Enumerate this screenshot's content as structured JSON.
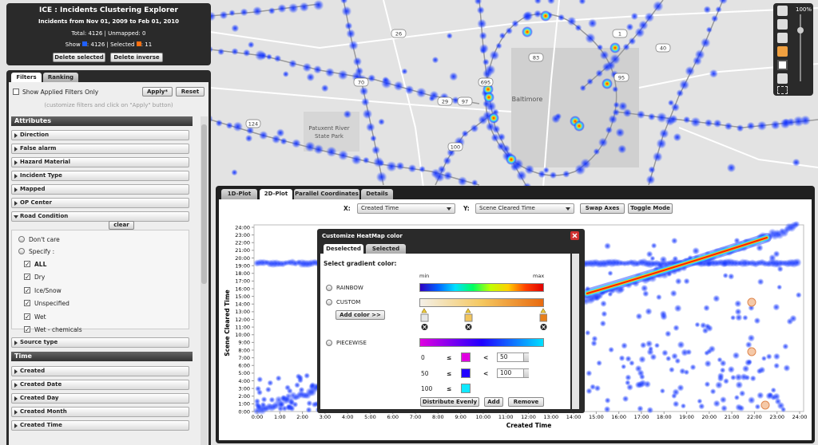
{
  "header": {
    "title": "ICE : Incidents Clustering Explorer",
    "period": "Incidents from Nov 01, 2009 to Feb 01, 2010",
    "totals": "Total: 4126 | Unmapped: 0",
    "show": "Show",
    "show_count": ": 4126 | Selected",
    "selected_count": ": 11",
    "buttons": [
      "Delete selected",
      "Delete inverse"
    ]
  },
  "filters": {
    "tabs": [
      "Filters",
      "Ranking"
    ],
    "show_applied": "Show Applied Filters Only",
    "apply": "Apply*",
    "reset": "Reset",
    "hint": "(customize filters and click on \"Apply\" button)",
    "attributes_title": "Attributes",
    "attributes": [
      "Direction",
      "False alarm",
      "Hazard Material",
      "Incident Type",
      "Mapped",
      "OP Center",
      "Road Condition"
    ],
    "clear": "clear",
    "radios": [
      "Don't care",
      "Specify :"
    ],
    "checks": [
      "ALL",
      "Dry",
      "Ice/Snow",
      "Unspecified",
      "Wet",
      "Wet - chemicals"
    ],
    "after": [
      "Source type"
    ],
    "time_title": "Time",
    "time": [
      "Created",
      "Created Date",
      "Created Day",
      "Created Month",
      "Created Time"
    ]
  },
  "map": {
    "places": [
      "Baltimore",
      "Patuxent River",
      "State Park"
    ],
    "shields": [
      "26",
      "70",
      "695",
      "97",
      "124",
      "100",
      "29",
      "83",
      "1",
      "40",
      "95"
    ]
  },
  "zoom": "100%",
  "plot_panel": {
    "tabs": [
      "1D-Plot",
      "2D-Plot",
      "Parallel Coordinates",
      "Details"
    ],
    "x_prompt": "X:",
    "x_field": "Created Time",
    "y_prompt": "Y:",
    "y_field": "Scene Cleared Time",
    "buttons": [
      "Swap Axes",
      "Toggle Mode"
    ],
    "chart_data": {
      "type": "scatter",
      "x_axis_label": "Created Time",
      "y_axis_label": "Scene Cleared Time",
      "xlim": [
        0,
        24
      ],
      "ylim": [
        0,
        24
      ],
      "xticks": [
        {
          "value": 0,
          "label": "0:00"
        },
        {
          "value": 1,
          "label": "1:00"
        },
        {
          "value": 2,
          "label": "2:00"
        },
        {
          "value": 3,
          "label": "3:00"
        },
        {
          "value": 4,
          "label": "4:00"
        },
        {
          "value": 5,
          "label": "5:00"
        },
        {
          "value": 6,
          "label": "6:00"
        },
        {
          "value": 7,
          "label": "7:00"
        },
        {
          "value": 8,
          "label": "8:00"
        },
        {
          "value": 9,
          "label": "9:00"
        },
        {
          "value": 10,
          "label": "10:00"
        },
        {
          "value": 11,
          "label": "11:00"
        },
        {
          "value": 12,
          "label": "12:00"
        },
        {
          "value": 13,
          "label": "13:00"
        },
        {
          "value": 14,
          "label": "14:00"
        },
        {
          "value": 15,
          "label": "15:00"
        },
        {
          "value": 16,
          "label": "16:00"
        },
        {
          "value": 17,
          "label": "17:00"
        },
        {
          "value": 18,
          "label": "18:00"
        },
        {
          "value": 19,
          "label": "19:00"
        },
        {
          "value": 20,
          "label": "20:00"
        },
        {
          "value": 21,
          "label": "21:00"
        },
        {
          "value": 22,
          "label": "22:00"
        },
        {
          "value": 23,
          "label": "23:00"
        },
        {
          "value": 24,
          "label": "24:00"
        }
      ],
      "yticks": [
        {
          "value": 0,
          "label": "0:00"
        },
        {
          "value": 1,
          "label": "1:00"
        },
        {
          "value": 2,
          "label": "2:00"
        },
        {
          "value": 3,
          "label": "3:00"
        },
        {
          "value": 4,
          "label": "4:00"
        },
        {
          "value": 5,
          "label": "5:00"
        },
        {
          "value": 6,
          "label": "6:00"
        },
        {
          "value": 7,
          "label": "7:00"
        },
        {
          "value": 8,
          "label": "8:00"
        },
        {
          "value": 9,
          "label": "9:00"
        },
        {
          "value": 10,
          "label": "10:00"
        },
        {
          "value": 11,
          "label": "11:00"
        },
        {
          "value": 12,
          "label": "12:00"
        },
        {
          "value": 13,
          "label": "13:00"
        },
        {
          "value": 14,
          "label": "14:00"
        },
        {
          "value": 15,
          "label": "15:00"
        },
        {
          "value": 16,
          "label": "16:00"
        },
        {
          "value": 17,
          "label": "17:00"
        },
        {
          "value": 18,
          "label": "18:00"
        },
        {
          "value": 19,
          "label": "19:00"
        },
        {
          "value": 20,
          "label": "20:00"
        },
        {
          "value": 21,
          "label": "21:00"
        },
        {
          "value": 22,
          "label": "22:00"
        },
        {
          "value": 23,
          "label": "23:00"
        },
        {
          "value": 24,
          "label": "24:00"
        }
      ]
    }
  },
  "dialog": {
    "title": "Customize HeatMap color",
    "tabs": [
      "Deselected",
      "Selected"
    ],
    "prompt": "Select gradient color:",
    "min": "min",
    "max": "max",
    "modes": [
      "RAINBOW",
      "CUSTOM",
      "PIECEWISE"
    ],
    "add_color": "Add color >>",
    "piecewise": [
      {
        "from": 0,
        "op": "≤",
        "lt": "<",
        "to": 50
      },
      {
        "from": 50,
        "op": "≤",
        "lt": "<",
        "to": 100
      },
      {
        "from": 100,
        "op": "≤"
      }
    ],
    "buttons": [
      "Distribute Evenly",
      "Add",
      "Remove"
    ]
  }
}
